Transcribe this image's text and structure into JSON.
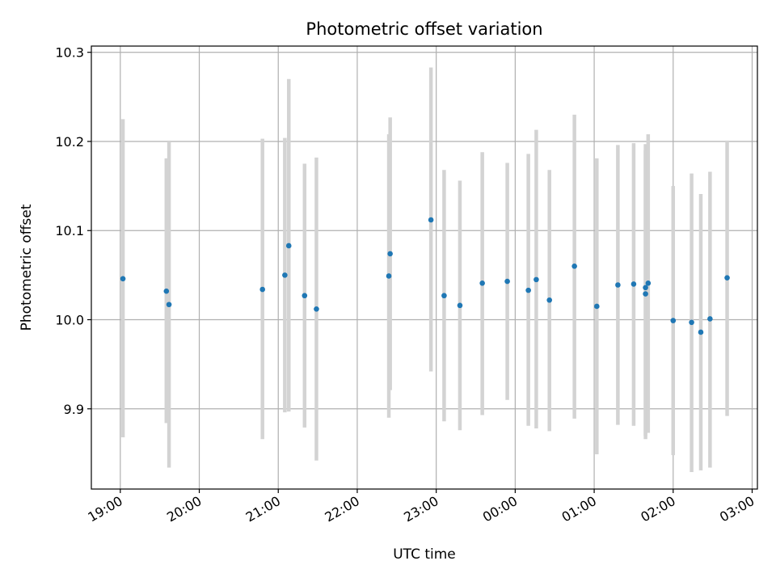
{
  "chart_data": {
    "type": "scatter",
    "title": "Photometric offset variation",
    "xlabel": "UTC time",
    "ylabel": "Photometric offset",
    "x_ticks": [
      "19:00",
      "20:00",
      "21:00",
      "22:00",
      "23:00",
      "00:00",
      "01:00",
      "02:00",
      "03:00"
    ],
    "y_ticks": [
      9.9,
      10.0,
      10.1,
      10.2,
      10.3
    ],
    "x_range": [
      "18:38",
      "03:04"
    ],
    "ylim": [
      9.81,
      10.307
    ],
    "grid": true,
    "marker_color": "#1f77b4",
    "errorbar_color": "#d3d3d3",
    "series": [
      {
        "points": [
          {
            "t": "19:02",
            "y": 10.046,
            "lo": 9.868,
            "hi": 10.225
          },
          {
            "t": "19:35",
            "y": 10.032,
            "lo": 9.884,
            "hi": 10.181
          },
          {
            "t": "19:37",
            "y": 10.017,
            "lo": 9.834,
            "hi": 10.2
          },
          {
            "t": "20:48",
            "y": 10.034,
            "lo": 9.866,
            "hi": 10.203
          },
          {
            "t": "21:05",
            "y": 10.05,
            "lo": 9.896,
            "hi": 10.204
          },
          {
            "t": "21:08",
            "y": 10.083,
            "lo": 9.897,
            "hi": 10.27
          },
          {
            "t": "21:20",
            "y": 10.027,
            "lo": 9.879,
            "hi": 10.175
          },
          {
            "t": "21:29",
            "y": 10.012,
            "lo": 9.842,
            "hi": 10.182
          },
          {
            "t": "22:24",
            "y": 10.049,
            "lo": 9.89,
            "hi": 10.208
          },
          {
            "t": "22:25",
            "y": 10.074,
            "lo": 9.921,
            "hi": 10.227
          },
          {
            "t": "22:56",
            "y": 10.112,
            "lo": 9.942,
            "hi": 10.283
          },
          {
            "t": "23:06",
            "y": 10.027,
            "lo": 9.886,
            "hi": 10.168
          },
          {
            "t": "23:18",
            "y": 10.016,
            "lo": 9.876,
            "hi": 10.156
          },
          {
            "t": "23:35",
            "y": 10.041,
            "lo": 9.893,
            "hi": 10.188
          },
          {
            "t": "23:54",
            "y": 10.043,
            "lo": 9.91,
            "hi": 10.176
          },
          {
            "t": "00:10",
            "y": 10.033,
            "lo": 9.881,
            "hi": 10.186
          },
          {
            "t": "00:16",
            "y": 10.045,
            "lo": 9.878,
            "hi": 10.213
          },
          {
            "t": "00:26",
            "y": 10.022,
            "lo": 9.875,
            "hi": 10.168
          },
          {
            "t": "00:45",
            "y": 10.06,
            "lo": 9.889,
            "hi": 10.23
          },
          {
            "t": "01:02",
            "y": 10.015,
            "lo": 9.849,
            "hi": 10.181
          },
          {
            "t": "01:18",
            "y": 10.039,
            "lo": 9.882,
            "hi": 10.196
          },
          {
            "t": "01:30",
            "y": 10.04,
            "lo": 9.881,
            "hi": 10.198
          },
          {
            "t": "01:39",
            "y": 10.036,
            "lo": 9.866,
            "hi": 10.197
          },
          {
            "t": "01:39",
            "y": 10.029,
            "lo": 9.87,
            "hi": 10.19
          },
          {
            "t": "01:41",
            "y": 10.041,
            "lo": 9.873,
            "hi": 10.208
          },
          {
            "t": "02:00",
            "y": 9.999,
            "lo": 9.848,
            "hi": 10.15
          },
          {
            "t": "02:14",
            "y": 9.997,
            "lo": 9.829,
            "hi": 10.164
          },
          {
            "t": "02:21",
            "y": 9.986,
            "lo": 9.831,
            "hi": 10.141
          },
          {
            "t": "02:28",
            "y": 10.001,
            "lo": 9.834,
            "hi": 10.166
          },
          {
            "t": "02:41",
            "y": 10.047,
            "lo": 9.892,
            "hi": 10.201
          }
        ]
      }
    ]
  }
}
